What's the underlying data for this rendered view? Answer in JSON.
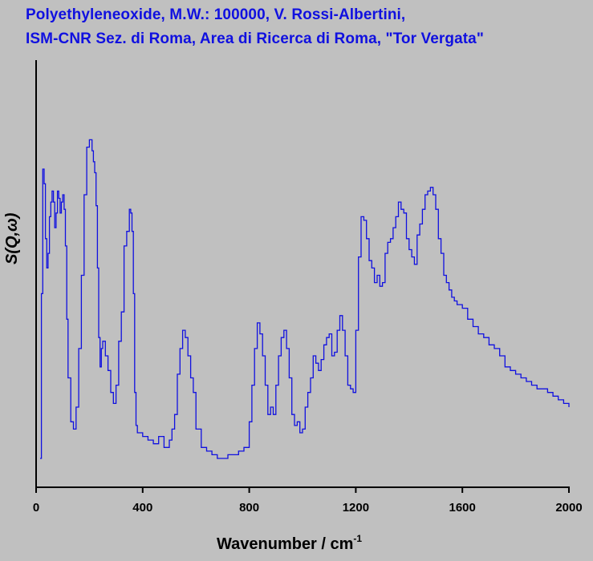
{
  "titles": {
    "line1": "Polyethyleneoxide, M.W.: 100000, V. Rossi-Albertini,",
    "line2": "ISM-CNR Sez. di Roma, Area di Ricerca di Roma, \"Tor Vergata\""
  },
  "colors": {
    "background": "#c0c0c0",
    "trace": "#1010e0",
    "title": "#1010e0",
    "axis": "#000000"
  },
  "chart_data": {
    "type": "line",
    "title": "Polyethyleneoxide, M.W.: 100000, V. Rossi-Albertini, ISM-CNR Sez. di Roma, Area di Ricerca di Roma, \"Tor Vergata\"",
    "xlabel": "Wavenumber / cm",
    "xlabel_superscript": "-1",
    "ylabel": "S(Q,ω)",
    "xlim": [
      0,
      2000
    ],
    "ylim": [
      0,
      100
    ],
    "y_ticks_shown": false,
    "grid": false,
    "xticks": [
      "0",
      "400",
      "800",
      "1200",
      "1600",
      "2000"
    ],
    "xtick_values": [
      0,
      400,
      800,
      1200,
      1600,
      2000
    ],
    "series": [
      {
        "x": [
          15,
          20,
          25,
          30,
          35,
          40,
          45,
          50,
          55,
          60,
          65,
          70,
          75,
          80,
          85,
          90,
          95,
          100,
          105,
          110,
          115,
          120,
          130,
          140,
          150,
          160,
          170,
          180,
          190,
          200,
          210,
          215,
          220,
          225,
          230,
          235,
          240,
          245,
          250,
          260,
          270,
          280,
          290,
          300,
          310,
          320,
          330,
          340,
          350,
          355,
          360,
          365,
          370,
          375,
          380,
          390,
          400,
          420,
          440,
          460,
          480,
          500,
          510,
          520,
          530,
          540,
          550,
          560,
          570,
          580,
          590,
          600,
          620,
          640,
          660,
          680,
          700,
          720,
          740,
          760,
          780,
          800,
          810,
          820,
          830,
          840,
          850,
          860,
          870,
          880,
          890,
          900,
          910,
          920,
          930,
          940,
          950,
          960,
          970,
          980,
          990,
          1000,
          1010,
          1020,
          1030,
          1040,
          1050,
          1060,
          1070,
          1080,
          1090,
          1100,
          1110,
          1120,
          1130,
          1140,
          1150,
          1160,
          1170,
          1180,
          1190,
          1200,
          1210,
          1220,
          1230,
          1240,
          1250,
          1260,
          1270,
          1280,
          1290,
          1300,
          1310,
          1320,
          1330,
          1340,
          1350,
          1360,
          1370,
          1380,
          1390,
          1400,
          1410,
          1420,
          1430,
          1440,
          1450,
          1460,
          1470,
          1480,
          1490,
          1500,
          1510,
          1520,
          1530,
          1540,
          1550,
          1560,
          1570,
          1580,
          1600,
          1620,
          1640,
          1660,
          1680,
          1700,
          1720,
          1740,
          1760,
          1780,
          1800,
          1820,
          1840,
          1860,
          1880,
          1900,
          1920,
          1940,
          1960,
          1980,
          2000
        ],
        "y": [
          0,
          45,
          79,
          75,
          60,
          52,
          56,
          66,
          70,
          73,
          70,
          63,
          67,
          73,
          71,
          67,
          70,
          72,
          68,
          58,
          38,
          22,
          10,
          8,
          14,
          30,
          50,
          72,
          85,
          87,
          84,
          81,
          78,
          69,
          52,
          33,
          25,
          30,
          32,
          28,
          24,
          18,
          15,
          20,
          32,
          40,
          58,
          62,
          68,
          67,
          62,
          45,
          18,
          9,
          7,
          7,
          6,
          5,
          4,
          6,
          3,
          5,
          8,
          12,
          23,
          30,
          35,
          33,
          28,
          22,
          18,
          8,
          3,
          2,
          1,
          0,
          0,
          1,
          1,
          2,
          3,
          10,
          20,
          30,
          37,
          34,
          28,
          20,
          12,
          14,
          12,
          20,
          28,
          33,
          35,
          30,
          22,
          12,
          9,
          10,
          7,
          8,
          14,
          18,
          22,
          28,
          26,
          24,
          27,
          31,
          33,
          34,
          28,
          29,
          35,
          39,
          35,
          28,
          20,
          19,
          18,
          35,
          55,
          66,
          65,
          60,
          54,
          52,
          48,
          50,
          47,
          48,
          56,
          59,
          60,
          63,
          66,
          70,
          68,
          67,
          60,
          57,
          55,
          53,
          61,
          64,
          68,
          72,
          73,
          74,
          72,
          68,
          60,
          56,
          50,
          48,
          46,
          44,
          43,
          42,
          41,
          38,
          36,
          34,
          33,
          31,
          30,
          28,
          25,
          24,
          23,
          22,
          21,
          20,
          19,
          19,
          18,
          17,
          16,
          15,
          14
        ]
      }
    ]
  }
}
